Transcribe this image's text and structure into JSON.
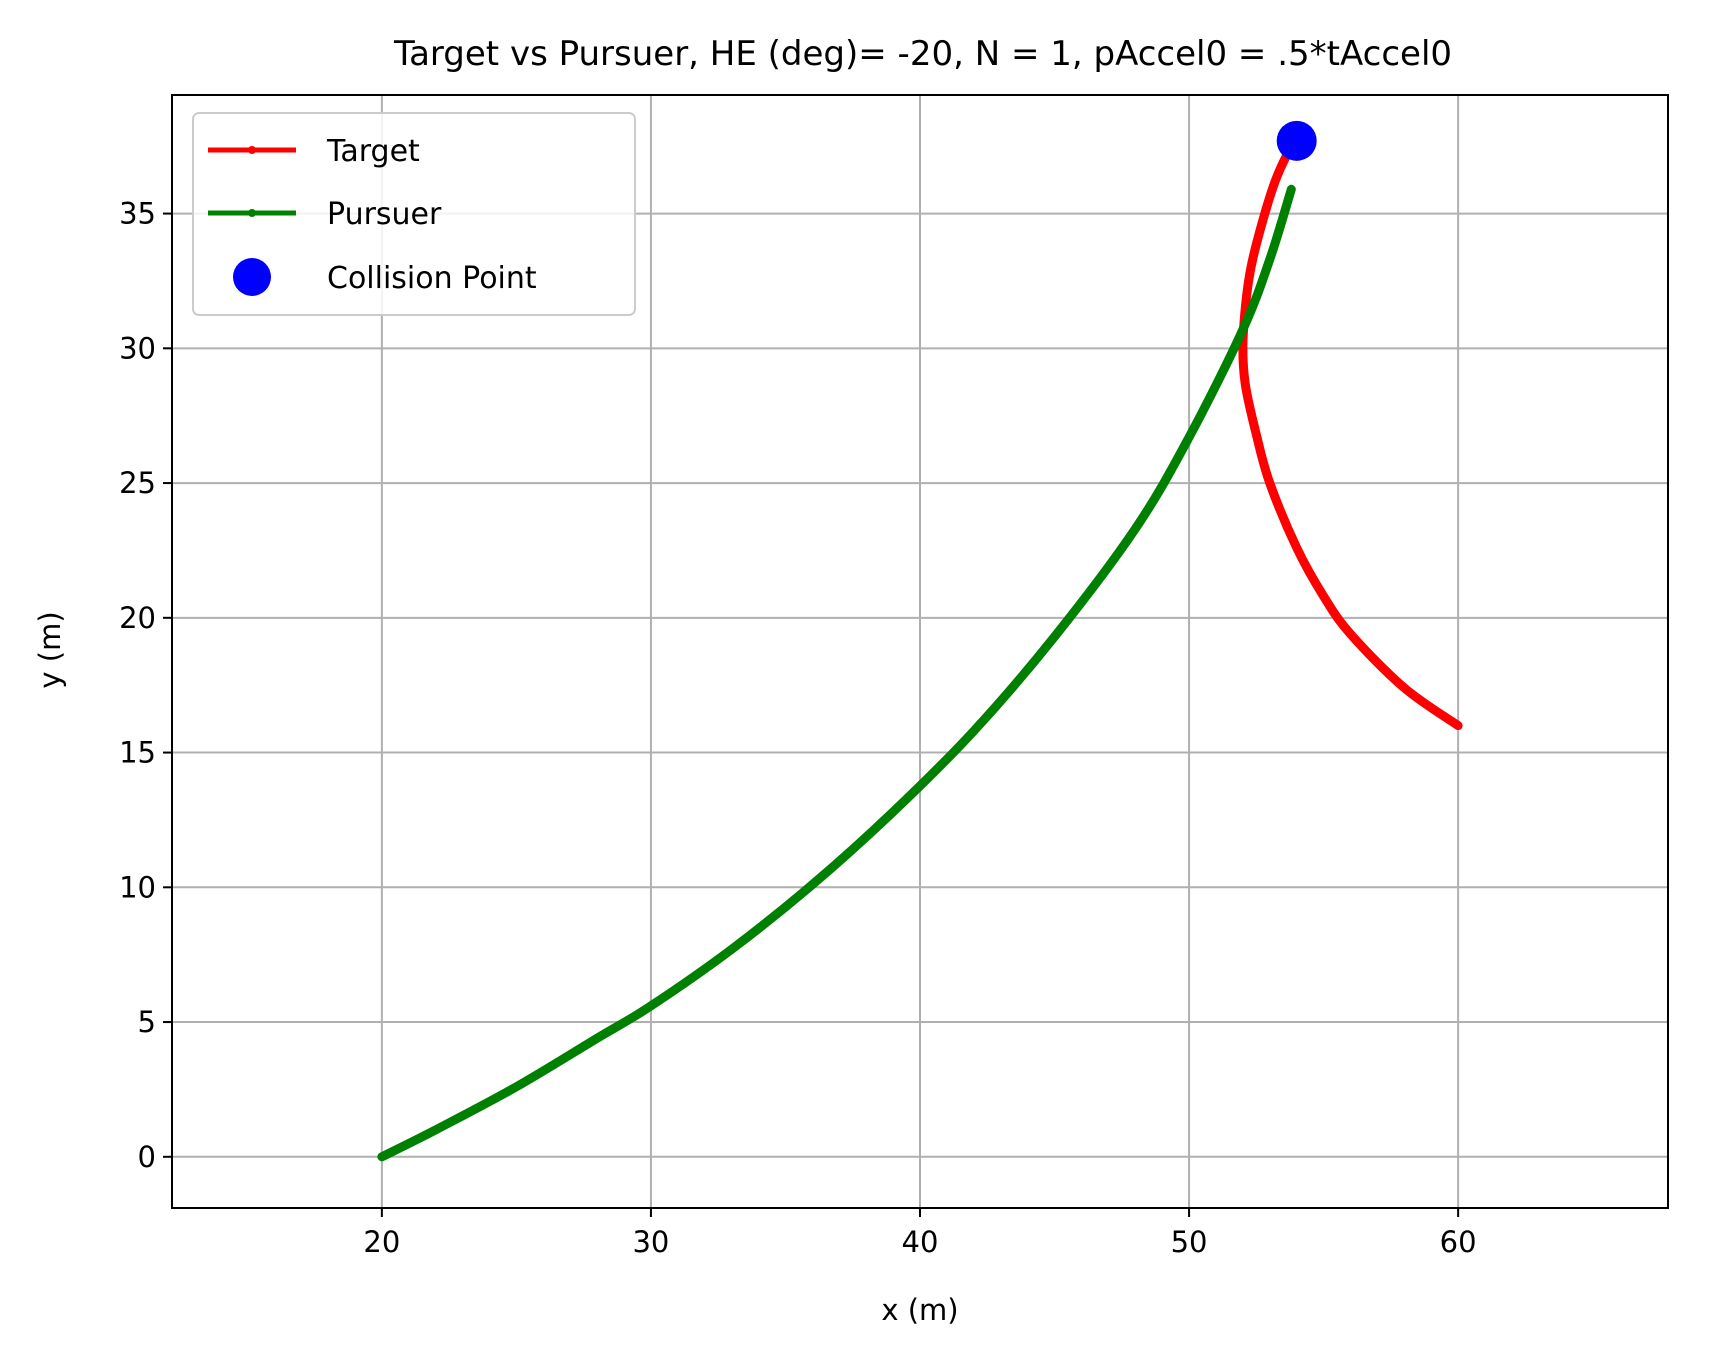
{
  "chart_data": {
    "type": "line",
    "title": "Target vs Pursuer, HE (deg)= -20, N = 1, pAccel0 = .5*tAccel0",
    "xlabel": "x (m)",
    "ylabel": "y (m)",
    "xlim": [
      12.2,
      67.8
    ],
    "ylim": [
      -1.9,
      39.4
    ],
    "xticks": [
      20,
      30,
      40,
      50,
      60
    ],
    "yticks": [
      0,
      5,
      10,
      15,
      20,
      25,
      30,
      35
    ],
    "xtick_labels": [
      "20",
      "30",
      "40",
      "50",
      "60"
    ],
    "ytick_labels": [
      "0",
      "5",
      "10",
      "15",
      "20",
      "25",
      "30",
      "35"
    ],
    "grid": true,
    "legend_position": "top-left",
    "series": [
      {
        "name": "Target",
        "color": "#ff0000",
        "x": [
          60.0,
          58.0,
          56.0,
          55.0,
          54.0,
          53.0,
          52.5,
          52.1,
          52.0,
          52.1,
          52.3,
          52.7,
          53.2,
          53.7,
          54.0
        ],
        "y": [
          16.0,
          17.4,
          19.4,
          20.8,
          22.6,
          25.0,
          26.8,
          28.6,
          30.0,
          31.6,
          33.0,
          34.6,
          36.2,
          37.3,
          37.7
        ]
      },
      {
        "name": "Pursuer",
        "color": "#008000",
        "x": [
          20.0,
          22.0,
          25.0,
          28.0,
          30.0,
          33.0,
          36.0,
          39.0,
          42.0,
          45.0,
          48.0,
          50.0,
          52.0,
          53.0,
          53.8
        ],
        "y": [
          0.0,
          1.0,
          2.6,
          4.4,
          5.6,
          7.7,
          10.1,
          12.8,
          15.8,
          19.3,
          23.3,
          26.7,
          30.7,
          33.3,
          35.9
        ]
      }
    ],
    "points": [
      {
        "name": "Collision Point",
        "color": "#0000ff",
        "x": 54.0,
        "y": 37.7
      }
    ]
  }
}
